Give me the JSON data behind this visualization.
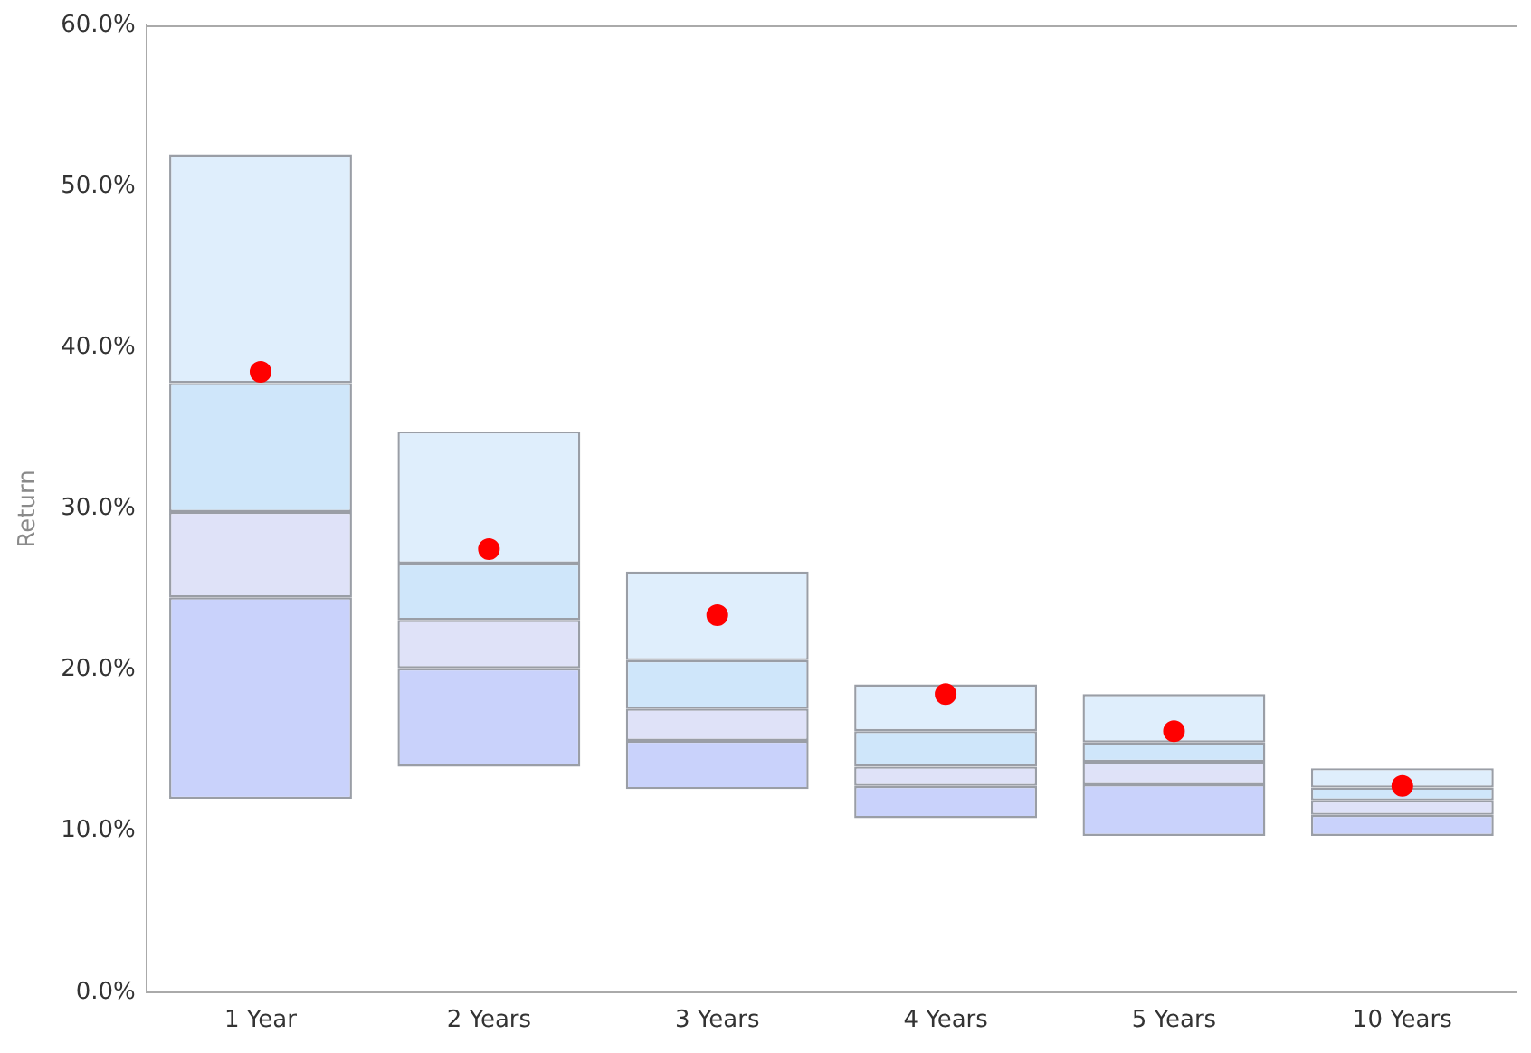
{
  "chart_data": {
    "type": "bar",
    "ylabel": "Return",
    "categories": [
      "1 Year",
      "2 Years",
      "3 Years",
      "4 Years",
      "5 Years",
      "10 Years"
    ],
    "series": [
      {
        "color": "#c9d2fb",
        "base": [
          12.0,
          14.0,
          12.6,
          10.8,
          9.7,
          9.7
        ],
        "values": [
          12.5,
          6.1,
          3.0,
          2.0,
          3.2,
          1.3
        ]
      },
      {
        "color": "#dfe2f8",
        "base": [
          24.5,
          20.1,
          15.6,
          12.8,
          12.9,
          11.0
        ],
        "values": [
          5.3,
          3.0,
          2.0,
          1.2,
          1.4,
          0.9
        ]
      },
      {
        "color": "#cfe6fa",
        "base": [
          29.8,
          23.1,
          17.6,
          14.0,
          14.3,
          11.9
        ],
        "values": [
          8.0,
          3.5,
          3.0,
          2.2,
          1.2,
          0.8
        ]
      },
      {
        "color": "#dfeefc",
        "base": [
          37.8,
          26.6,
          20.6,
          16.2,
          15.5,
          12.7
        ],
        "values": [
          14.2,
          8.2,
          5.5,
          2.9,
          3.0,
          1.2
        ]
      },
      {
        "type": "scatter",
        "color": "#ff0000",
        "marker": "circle",
        "x": [
          "1 Year",
          "2 Years",
          "3 Years",
          "4 Years",
          "5 Years",
          "10 Years"
        ],
        "values": [
          38.5,
          27.5,
          23.4,
          18.5,
          16.2,
          12.8
        ]
      }
    ],
    "ylim": [
      0,
      60
    ],
    "yticks": [
      {
        "value": 0,
        "label": "0.0%"
      },
      {
        "value": 10,
        "label": "10.0%"
      },
      {
        "value": 20,
        "label": "20.0%"
      },
      {
        "value": 30,
        "label": "30.0%"
      },
      {
        "value": 40,
        "label": "40.0%"
      },
      {
        "value": 50,
        "label": "50.0%"
      },
      {
        "value": 60,
        "label": "60.0%"
      }
    ],
    "grid": false,
    "legend": false
  }
}
